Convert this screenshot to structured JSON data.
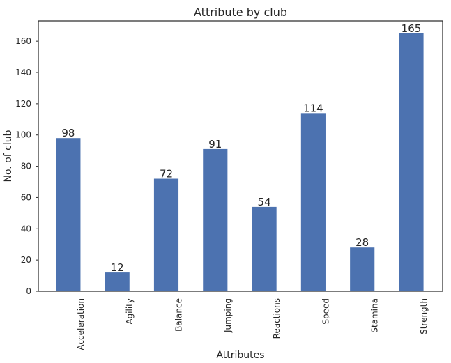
{
  "chart_data": {
    "type": "bar",
    "title": "Attribute by club",
    "xlabel": "Attributes",
    "ylabel": "No. of club",
    "categories": [
      "Acceleration",
      "Agility",
      "Balance",
      "Jumping",
      "Reactions",
      "Speed",
      "Stamina",
      "Strength"
    ],
    "values": [
      98,
      12,
      72,
      91,
      54,
      114,
      28,
      165
    ],
    "ylim": [
      0,
      173
    ],
    "yticks": [
      0,
      20,
      40,
      60,
      80,
      100,
      120,
      140,
      160
    ],
    "data_labels": true,
    "grid": false,
    "legend": "none",
    "bar_color": "#4c72b0"
  }
}
